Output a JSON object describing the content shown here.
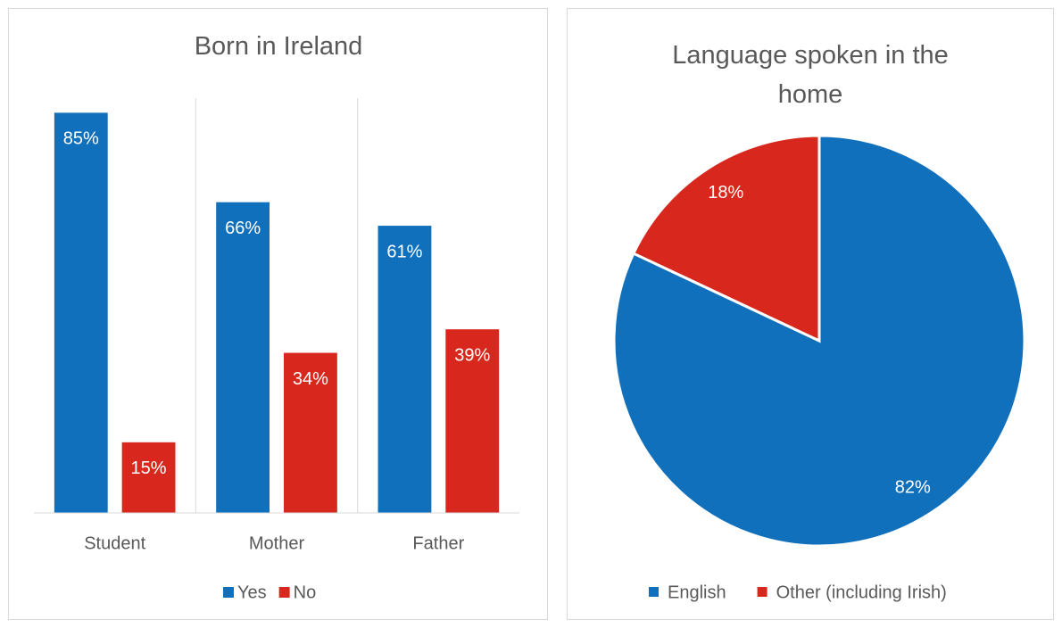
{
  "chart_data": [
    {
      "type": "bar",
      "title": "Born in Ireland",
      "categories": [
        "Student",
        "Mother",
        "Father"
      ],
      "series": [
        {
          "name": "Yes",
          "color": "#1170BB",
          "values": [
            85,
            66,
            61
          ],
          "value_labels": [
            "85%",
            "66%",
            "61%"
          ]
        },
        {
          "name": "No",
          "color": "#D8281E",
          "values": [
            15,
            34,
            39
          ],
          "value_labels": [
            "15%",
            "34%",
            "39%"
          ]
        }
      ],
      "ylim": [
        0,
        90
      ],
      "legend": "bottom"
    },
    {
      "type": "pie",
      "title": "Language spoken in the home",
      "categories": [
        "English",
        "Other (including Irish)"
      ],
      "values": [
        82,
        18
      ],
      "value_labels": [
        "82%",
        "18%"
      ],
      "colors": [
        "#1170BB",
        "#D8281E"
      ],
      "legend": "bottom"
    }
  ]
}
